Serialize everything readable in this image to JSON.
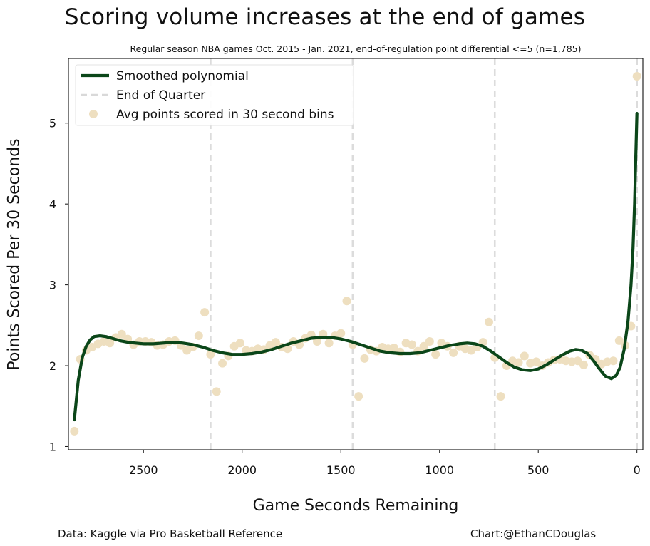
{
  "chart_data": {
    "type": "scatter",
    "title": "Scoring volume increases at the end of games",
    "subtitle": "Regular season NBA games Oct. 2015 - Jan. 2021, end-of-regulation point differential <=5 (n=1,785)",
    "xlabel": "Game Seconds Remaining",
    "ylabel": "Points Scored Per 30 Seconds",
    "xlim": [
      2880,
      -30
    ],
    "ylim": [
      0.96,
      5.8
    ],
    "x_reversed": true,
    "xticks": [
      2500,
      2000,
      1500,
      1000,
      500,
      0
    ],
    "yticks": [
      1,
      2,
      3,
      4,
      5
    ],
    "grid": false,
    "legend_position": "top-left",
    "legend": [
      {
        "label": "Smoothed polynomial",
        "kind": "line",
        "color": "#0b4619"
      },
      {
        "label": "End of Quarter",
        "kind": "dashed-line",
        "color": "#d9d9d9"
      },
      {
        "label": "Avg points scored in 30 second bins",
        "kind": "marker",
        "color": "#eedfc0"
      }
    ],
    "quarter_ends": [
      2160,
      1440,
      720,
      0
    ],
    "series": [
      {
        "kind": "scatter",
        "color": "#eedfc0",
        "points": [
          [
            2850,
            1.19
          ],
          [
            2820,
            2.08
          ],
          [
            2790,
            2.19
          ],
          [
            2760,
            2.23
          ],
          [
            2730,
            2.27
          ],
          [
            2700,
            2.3
          ],
          [
            2670,
            2.28
          ],
          [
            2640,
            2.35
          ],
          [
            2610,
            2.39
          ],
          [
            2580,
            2.33
          ],
          [
            2550,
            2.26
          ],
          [
            2520,
            2.3
          ],
          [
            2490,
            2.3
          ],
          [
            2460,
            2.29
          ],
          [
            2430,
            2.25
          ],
          [
            2400,
            2.26
          ],
          [
            2370,
            2.3
          ],
          [
            2340,
            2.31
          ],
          [
            2310,
            2.25
          ],
          [
            2280,
            2.19
          ],
          [
            2250,
            2.23
          ],
          [
            2220,
            2.37
          ],
          [
            2190,
            2.66
          ],
          [
            2160,
            2.14
          ],
          [
            2130,
            1.68
          ],
          [
            2100,
            2.03
          ],
          [
            2070,
            2.12
          ],
          [
            2040,
            2.24
          ],
          [
            2010,
            2.28
          ],
          [
            1980,
            2.19
          ],
          [
            1950,
            2.18
          ],
          [
            1920,
            2.21
          ],
          [
            1890,
            2.2
          ],
          [
            1860,
            2.25
          ],
          [
            1830,
            2.29
          ],
          [
            1800,
            2.23
          ],
          [
            1770,
            2.21
          ],
          [
            1740,
            2.3
          ],
          [
            1710,
            2.26
          ],
          [
            1680,
            2.34
          ],
          [
            1650,
            2.38
          ],
          [
            1620,
            2.3
          ],
          [
            1590,
            2.39
          ],
          [
            1560,
            2.28
          ],
          [
            1530,
            2.37
          ],
          [
            1500,
            2.4
          ],
          [
            1470,
            2.8
          ],
          [
            1440,
            2.26
          ],
          [
            1410,
            1.62
          ],
          [
            1380,
            2.09
          ],
          [
            1350,
            2.2
          ],
          [
            1320,
            2.18
          ],
          [
            1290,
            2.23
          ],
          [
            1260,
            2.21
          ],
          [
            1230,
            2.22
          ],
          [
            1200,
            2.17
          ],
          [
            1170,
            2.28
          ],
          [
            1140,
            2.26
          ],
          [
            1110,
            2.18
          ],
          [
            1080,
            2.24
          ],
          [
            1050,
            2.3
          ],
          [
            1020,
            2.14
          ],
          [
            990,
            2.28
          ],
          [
            960,
            2.24
          ],
          [
            930,
            2.16
          ],
          [
            900,
            2.24
          ],
          [
            870,
            2.21
          ],
          [
            840,
            2.19
          ],
          [
            810,
            2.23
          ],
          [
            780,
            2.29
          ],
          [
            750,
            2.54
          ],
          [
            720,
            2.1
          ],
          [
            690,
            1.62
          ],
          [
            660,
            2.0
          ],
          [
            630,
            2.06
          ],
          [
            600,
            2.04
          ],
          [
            570,
            2.12
          ],
          [
            540,
            2.03
          ],
          [
            510,
            2.05
          ],
          [
            480,
            2.0
          ],
          [
            450,
            2.04
          ],
          [
            420,
            2.07
          ],
          [
            390,
            2.08
          ],
          [
            360,
            2.06
          ],
          [
            330,
            2.05
          ],
          [
            300,
            2.06
          ],
          [
            270,
            2.01
          ],
          [
            240,
            2.13
          ],
          [
            210,
            2.08
          ],
          [
            180,
            2.02
          ],
          [
            150,
            2.05
          ],
          [
            120,
            2.06
          ],
          [
            90,
            2.31
          ],
          [
            60,
            2.25
          ],
          [
            30,
            2.49
          ],
          [
            0,
            5.58
          ]
        ]
      },
      {
        "kind": "line",
        "color": "#0b4619",
        "points": [
          [
            2850,
            1.33
          ],
          [
            2830,
            1.82
          ],
          [
            2810,
            2.1
          ],
          [
            2790,
            2.24
          ],
          [
            2770,
            2.32
          ],
          [
            2750,
            2.36
          ],
          [
            2720,
            2.37
          ],
          [
            2690,
            2.36
          ],
          [
            2660,
            2.34
          ],
          [
            2620,
            2.31
          ],
          [
            2580,
            2.29
          ],
          [
            2540,
            2.28
          ],
          [
            2500,
            2.27
          ],
          [
            2450,
            2.27
          ],
          [
            2400,
            2.28
          ],
          [
            2350,
            2.29
          ],
          [
            2300,
            2.28
          ],
          [
            2250,
            2.26
          ],
          [
            2200,
            2.23
          ],
          [
            2150,
            2.19
          ],
          [
            2100,
            2.16
          ],
          [
            2050,
            2.14
          ],
          [
            2000,
            2.14
          ],
          [
            1950,
            2.15
          ],
          [
            1900,
            2.17
          ],
          [
            1850,
            2.2
          ],
          [
            1800,
            2.24
          ],
          [
            1750,
            2.28
          ],
          [
            1700,
            2.31
          ],
          [
            1650,
            2.34
          ],
          [
            1600,
            2.35
          ],
          [
            1550,
            2.35
          ],
          [
            1500,
            2.33
          ],
          [
            1450,
            2.3
          ],
          [
            1400,
            2.26
          ],
          [
            1350,
            2.22
          ],
          [
            1300,
            2.18
          ],
          [
            1250,
            2.16
          ],
          [
            1200,
            2.15
          ],
          [
            1150,
            2.15
          ],
          [
            1100,
            2.16
          ],
          [
            1050,
            2.19
          ],
          [
            1000,
            2.22
          ],
          [
            950,
            2.25
          ],
          [
            900,
            2.27
          ],
          [
            860,
            2.28
          ],
          [
            820,
            2.27
          ],
          [
            780,
            2.24
          ],
          [
            740,
            2.18
          ],
          [
            700,
            2.11
          ],
          [
            660,
            2.04
          ],
          [
            620,
            1.98
          ],
          [
            580,
            1.95
          ],
          [
            540,
            1.94
          ],
          [
            500,
            1.96
          ],
          [
            460,
            2.01
          ],
          [
            420,
            2.07
          ],
          [
            380,
            2.13
          ],
          [
            340,
            2.18
          ],
          [
            310,
            2.2
          ],
          [
            280,
            2.19
          ],
          [
            250,
            2.15
          ],
          [
            220,
            2.06
          ],
          [
            190,
            1.96
          ],
          [
            160,
            1.87
          ],
          [
            130,
            1.84
          ],
          [
            105,
            1.88
          ],
          [
            85,
            1.98
          ],
          [
            65,
            2.2
          ],
          [
            45,
            2.55
          ],
          [
            30,
            3.0
          ],
          [
            20,
            3.45
          ],
          [
            12,
            4.0
          ],
          [
            6,
            4.55
          ],
          [
            0,
            5.12
          ]
        ]
      }
    ]
  },
  "footer": {
    "source": "Data: Kaggle via Pro Basketball Reference",
    "credit": "Chart:@EthanCDouglas"
  }
}
